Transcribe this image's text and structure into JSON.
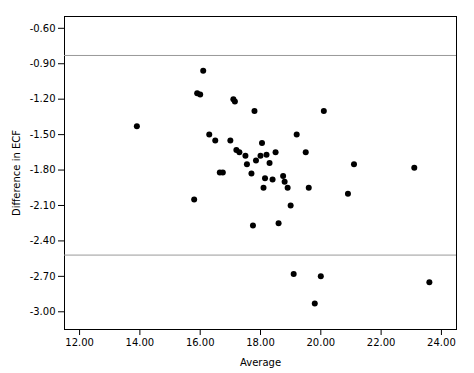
{
  "chart_data": {
    "type": "scatter",
    "xlabel": "Average",
    "ylabel": "Difference in ECF",
    "x": [
      13.9,
      15.8,
      15.9,
      16.0,
      16.1,
      16.3,
      16.5,
      16.65,
      16.75,
      17.0,
      17.1,
      17.15,
      17.2,
      17.3,
      17.5,
      17.55,
      17.7,
      17.75,
      17.8,
      17.85,
      18.0,
      18.05,
      18.1,
      18.15,
      18.2,
      18.3,
      18.4,
      18.5,
      18.6,
      18.75,
      18.8,
      18.9,
      19.0,
      19.1,
      19.2,
      19.5,
      19.6,
      19.8,
      20.0,
      20.1,
      20.9,
      21.1,
      23.1,
      23.6
    ],
    "values": [
      -1.43,
      -2.05,
      -1.15,
      -1.16,
      -0.96,
      -1.5,
      -1.55,
      -1.82,
      -1.82,
      -1.55,
      -1.2,
      -1.22,
      -1.63,
      -1.65,
      -1.68,
      -1.75,
      -1.83,
      -2.27,
      -1.3,
      -1.72,
      -1.68,
      -1.57,
      -1.95,
      -1.87,
      -1.67,
      -1.74,
      -1.88,
      -1.65,
      -2.25,
      -1.85,
      -1.9,
      -1.95,
      -2.1,
      -2.68,
      -1.5,
      -1.65,
      -1.95,
      -2.93,
      -2.7,
      -1.3,
      -2.0,
      -1.75,
      -1.78,
      -2.75
    ],
    "color": "black",
    "marker": "circle",
    "reference_lines": {
      "values": [
        -0.83,
        -2.52
      ],
      "color": "#999999"
    },
    "xlim": [
      11.5,
      24.5
    ],
    "ylim": [
      -3.15,
      -0.5
    ],
    "xticks": [
      {
        "value": 12.0,
        "label": "12.00"
      },
      {
        "value": 14.0,
        "label": "14.00"
      },
      {
        "value": 16.0,
        "label": "16.00"
      },
      {
        "value": 18.0,
        "label": "18.00"
      },
      {
        "value": 20.0,
        "label": "20.00"
      },
      {
        "value": 22.0,
        "label": "22.00"
      },
      {
        "value": 24.0,
        "label": "24.00"
      }
    ],
    "yticks": [
      {
        "value": -0.6,
        "label": "-0.60"
      },
      {
        "value": -0.9,
        "label": "-0.90"
      },
      {
        "value": -1.2,
        "label": "-1.20"
      },
      {
        "value": -1.5,
        "label": "-1.50"
      },
      {
        "value": -1.8,
        "label": "-1.80"
      },
      {
        "value": -2.1,
        "label": "-2.10"
      },
      {
        "value": -2.4,
        "label": "-2.40"
      },
      {
        "value": -2.7,
        "label": "-2.70"
      },
      {
        "value": -3.0,
        "label": "-3.00"
      }
    ]
  }
}
